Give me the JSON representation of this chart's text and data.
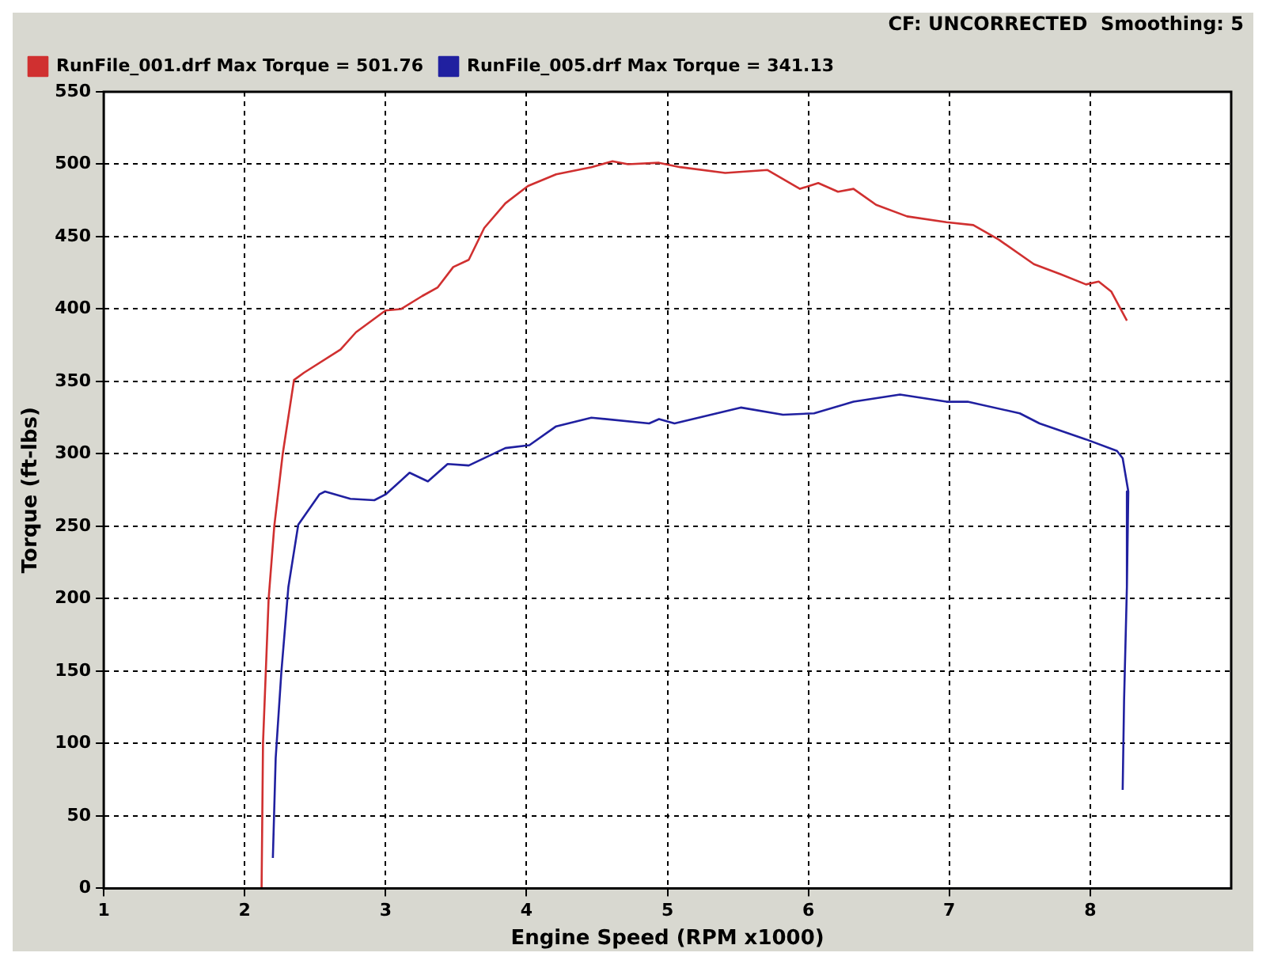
{
  "chart_data": {
    "type": "line",
    "xlabel": "Engine Speed (RPM x1000)",
    "ylabel": "Torque (ft-lbs)",
    "annotations": [
      "CF: UNCORRECTED  Smoothing: 5"
    ],
    "xlim": [
      1,
      9
    ],
    "xticks": [
      1,
      2,
      3,
      4,
      5,
      6,
      7,
      8
    ],
    "ylim": [
      0,
      550
    ],
    "yticks": [
      0,
      50,
      100,
      150,
      200,
      250,
      300,
      350,
      400,
      450,
      500,
      550
    ],
    "grid": true,
    "legend": "top left",
    "marker": "none",
    "line_style": "solid",
    "series": [
      {
        "name": "RunFile_001.drf Max Torque = 501.76",
        "color": "#d03030",
        "x": [
          2.12,
          2.13,
          2.15,
          2.17,
          2.21,
          2.27,
          2.35,
          2.42,
          2.68,
          2.79,
          3.0,
          3.11,
          3.26,
          3.37,
          3.48,
          3.59,
          3.7,
          3.85,
          4.01,
          4.21,
          4.46,
          4.61,
          4.72,
          4.94,
          5.09,
          5.41,
          5.71,
          5.94,
          6.07,
          6.21,
          6.32,
          6.48,
          6.7,
          6.98,
          7.17,
          7.35,
          7.6,
          7.79,
          7.97,
          8.06,
          8.15,
          8.26
        ],
        "values": [
          0,
          100,
          150,
          200,
          250,
          300,
          351,
          356,
          372,
          384,
          399,
          400,
          409,
          415,
          429,
          434,
          456,
          473,
          485,
          493,
          498,
          502,
          500,
          501,
          498,
          494,
          496,
          483,
          487,
          481,
          483,
          472,
          464,
          460,
          458,
          448,
          431,
          424,
          417,
          419,
          412,
          392
        ]
      },
      {
        "name": "RunFile_005.drf Max Torque = 341.13",
        "color": "#2020a0",
        "x": [
          2.2,
          2.22,
          2.26,
          2.31,
          2.38,
          2.53,
          2.57,
          2.75,
          2.92,
          3.0,
          3.17,
          3.3,
          3.44,
          3.59,
          3.85,
          4.02,
          4.21,
          4.46,
          4.87,
          4.94,
          5.05,
          5.52,
          5.82,
          6.04,
          6.32,
          6.65,
          6.98,
          7.13,
          7.5,
          7.64,
          7.97,
          8.19,
          8.23,
          8.27,
          8.26,
          8.24,
          8.23
        ],
        "values": [
          21,
          90,
          149,
          208,
          251,
          272,
          274,
          269,
          268,
          272,
          287,
          281,
          293,
          292,
          304,
          306,
          319,
          325,
          321,
          324,
          321,
          332,
          327,
          328,
          336,
          341,
          336,
          336,
          328,
          321,
          310,
          302,
          297,
          274,
          208,
          130,
          68
        ]
      }
    ]
  }
}
